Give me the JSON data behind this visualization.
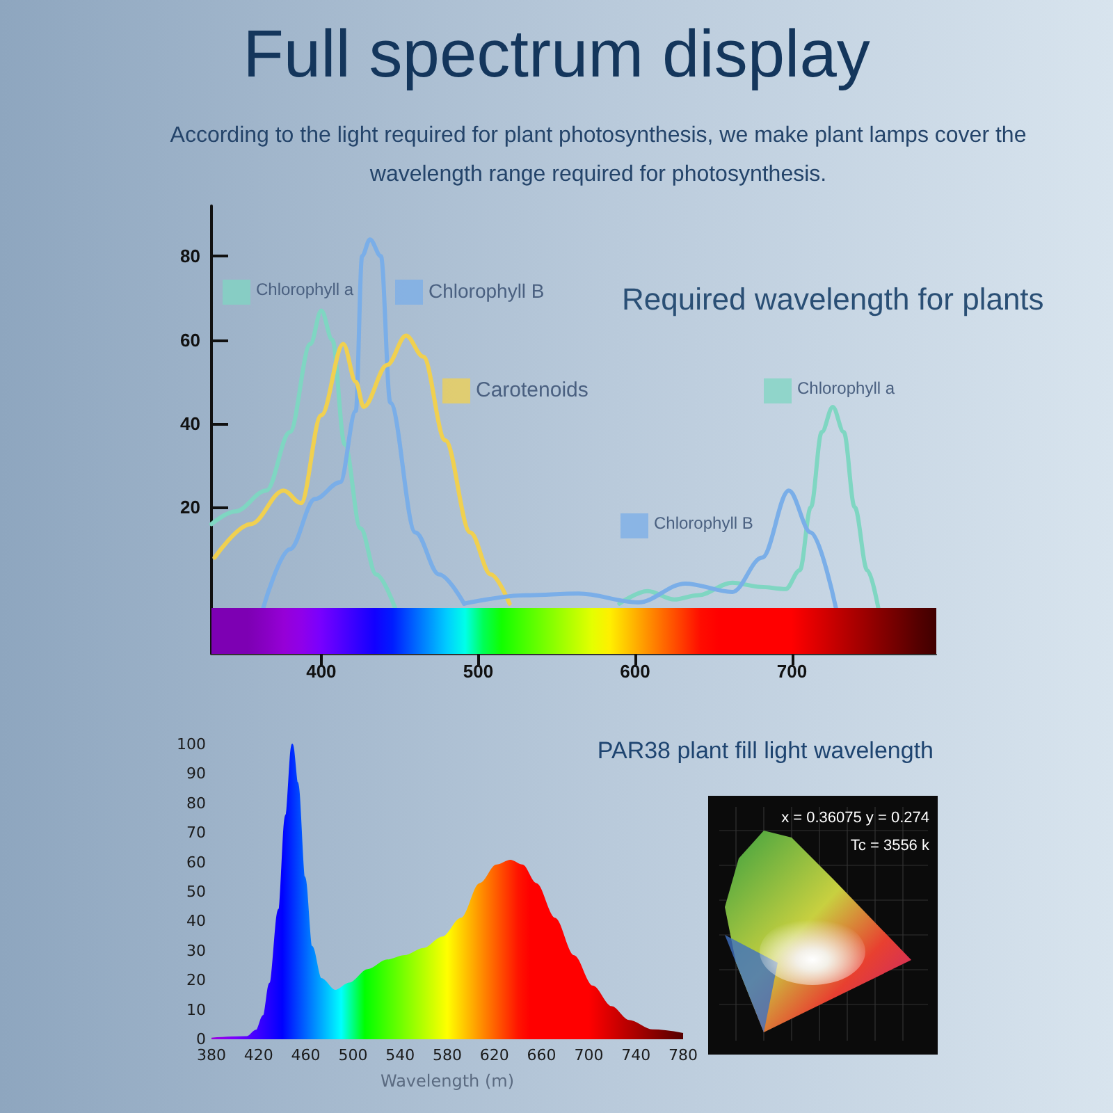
{
  "chart_data": [
    {
      "type": "line",
      "title": "Full spectrum display",
      "subtitle": "According to the light required for plant photosynthesis, we make plant lamps cover the wavelength range required for photosynthesis.",
      "annotations": [
        "Required wavelength for plants"
      ],
      "xlim": [
        330,
        792
      ],
      "xticks": [
        400,
        500,
        600,
        700
      ],
      "ylim": [
        -15,
        92
      ],
      "yticks": [
        20,
        40,
        60,
        80
      ],
      "marker": "none",
      "legend": "top left",
      "series": [
        {
          "name": "Chlorophyll a",
          "color": "#7fd6c2",
          "x": [
            330,
            345,
            365,
            380,
            393,
            400,
            407,
            415,
            425,
            435,
            447
          ],
          "values": [
            16,
            19,
            24,
            38,
            59,
            67,
            60,
            35,
            15,
            4,
            -4
          ]
        },
        {
          "name": "Chlorophyll B",
          "color": "#7aaee8",
          "x": [
            363,
            380,
            396,
            412,
            422,
            426,
            431,
            438,
            444,
            460,
            475,
            491
          ],
          "values": [
            -4,
            10,
            22,
            26,
            43,
            80,
            84,
            80,
            45,
            14,
            4,
            -3
          ]
        },
        {
          "name": "Carotenoids",
          "color": "#f0d050",
          "x": [
            332,
            355,
            376,
            387,
            400,
            414,
            422,
            427,
            442,
            454,
            465,
            479,
            495,
            508,
            520
          ],
          "values": [
            8,
            16,
            24,
            21,
            42,
            59,
            50,
            44,
            54,
            61,
            56,
            36,
            14,
            4,
            -3
          ]
        },
        {
          "name": "Chlorophyll a",
          "color": "#7fd6c2",
          "x": [
            590,
            608,
            625,
            640,
            662,
            680,
            696,
            705,
            712,
            719,
            726,
            733,
            740,
            748,
            755
          ],
          "values": [
            -3,
            0,
            -2,
            -1,
            2,
            1,
            0.5,
            5,
            20,
            38,
            44,
            38,
            20,
            5,
            -4
          ]
        },
        {
          "name": "Chlorophyll B",
          "color": "#7aaee8",
          "x": [
            491,
            530,
            564,
            602,
            632,
            662,
            681,
            698,
            712,
            728
          ],
          "values": [
            -3,
            -1,
            -0.6,
            -2.7,
            1.8,
            -0.2,
            8,
            24,
            14,
            -4
          ]
        }
      ]
    },
    {
      "type": "area",
      "title": "PAR38 plant fill light wavelength",
      "xlabel": "Wavelength (m)",
      "annotations": [
        "x = 0.36075 y = 0.274",
        "Tc = 3556 k"
      ],
      "xlim": [
        380,
        780
      ],
      "xticks": [
        380,
        420,
        460,
        500,
        540,
        580,
        620,
        660,
        700,
        740,
        780
      ],
      "ylim": [
        0,
        100
      ],
      "yticks": [
        0,
        10,
        20,
        30,
        40,
        50,
        60,
        70,
        80,
        90,
        100
      ],
      "marker": "none",
      "x": [
        380,
        410,
        418,
        424,
        429.5,
        437,
        443,
        448.5,
        453,
        459,
        465,
        473,
        485,
        497,
        513,
        529,
        544,
        560,
        576,
        592,
        608,
        622,
        633.5,
        643.5,
        655,
        671,
        687,
        703,
        719,
        734,
        754,
        780
      ],
      "values": [
        0.3,
        0.8,
        3,
        8,
        19,
        44,
        76,
        100,
        87,
        55,
        31.5,
        20.5,
        16.5,
        19,
        23.6,
        26.8,
        28.3,
        30.7,
        34.6,
        41,
        52.8,
        59,
        60.6,
        59,
        52.8,
        41,
        28.3,
        18,
        11,
        6.3,
        3.1,
        1.9
      ]
    }
  ]
}
